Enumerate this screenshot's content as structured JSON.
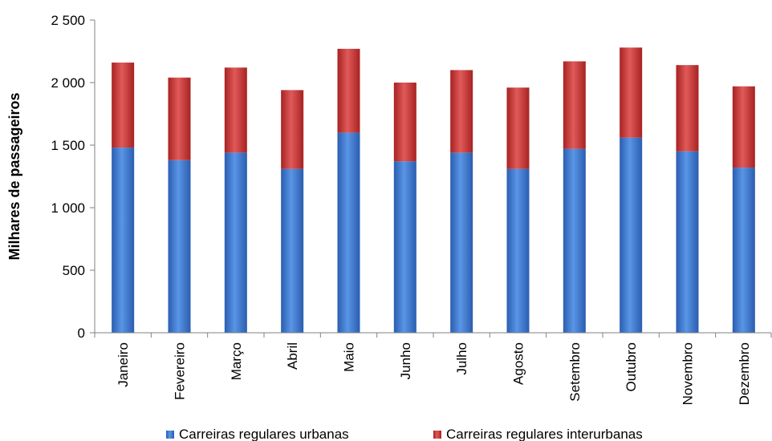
{
  "chart_data": {
    "type": "bar",
    "stacked": true,
    "title": "",
    "xlabel": "",
    "ylabel": "Milhares de passageiros",
    "ylim": [
      0,
      2500
    ],
    "yticks": [
      0,
      500,
      1000,
      1500,
      2000,
      2500
    ],
    "ytick_labels": [
      "0",
      "500",
      "1 000",
      "1 500",
      "2 000",
      "2 500"
    ],
    "categories": [
      "Janeiro",
      "Fevereiro",
      "Março",
      "Abril",
      "Maio",
      "Junho",
      "Julho",
      "Agosto",
      "Setembro",
      "Outubro",
      "Novembro",
      "Dezembro"
    ],
    "series": [
      {
        "name": "Carreiras regulares urbanas",
        "color": "#3f7ad4",
        "values": [
          1480,
          1380,
          1440,
          1310,
          1600,
          1370,
          1440,
          1310,
          1470,
          1560,
          1450,
          1320
        ]
      },
      {
        "name": "Carreiras regulares interurbanas",
        "color": "#d13a3a",
        "values": [
          680,
          660,
          680,
          630,
          670,
          630,
          660,
          650,
          700,
          720,
          690,
          650
        ]
      }
    ],
    "grid": false,
    "legend_position": "bottom"
  }
}
